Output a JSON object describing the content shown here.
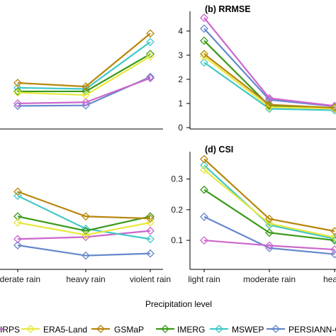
{
  "chart_data": [
    {
      "type": "line",
      "title": "",
      "categories": [
        "light rain",
        "moderate rain",
        "heavy rain",
        "violent rain"
      ],
      "series": [
        {
          "name": "CHIRPS",
          "values": [
            null,
            1.0,
            1.05,
            2.05
          ]
        },
        {
          "name": "ERA5-Land",
          "values": [
            null,
            1.45,
            1.35,
            2.95
          ]
        },
        {
          "name": "GSMaP",
          "values": [
            null,
            1.85,
            1.7,
            3.9
          ]
        },
        {
          "name": "IMERG",
          "values": [
            null,
            1.5,
            1.5,
            3.05
          ]
        },
        {
          "name": "MSWEP",
          "values": [
            null,
            1.65,
            1.6,
            3.55
          ]
        },
        {
          "name": "PERSIANN-CCS",
          "values": [
            null,
            0.9,
            0.92,
            2.1
          ]
        }
      ]
    },
    {
      "type": "line",
      "title": "(b) RRMSE",
      "ylim": [
        0,
        4.7
      ],
      "yticks": [
        0,
        1,
        2,
        3,
        4
      ],
      "categories": [
        "light rain",
        "moderate rain",
        "heavy rain",
        "violent rain"
      ],
      "series": [
        {
          "name": "CHIRPS",
          "values": [
            4.55,
            1.22,
            0.9,
            null
          ]
        },
        {
          "name": "ERA5-Land",
          "values": [
            2.95,
            0.85,
            0.78,
            null
          ]
        },
        {
          "name": "GSMaP",
          "values": [
            3.05,
            0.95,
            0.82,
            null
          ]
        },
        {
          "name": "IMERG",
          "values": [
            3.6,
            0.9,
            0.8,
            null
          ]
        },
        {
          "name": "MSWEP",
          "values": [
            2.7,
            0.78,
            0.72,
            null
          ]
        },
        {
          "name": "PERSIANN-CCS",
          "values": [
            4.1,
            1.15,
            0.88,
            null
          ]
        }
      ]
    },
    {
      "type": "line",
      "title": "",
      "categories": [
        "light rain",
        "moderate rain",
        "heavy rain",
        "violent rain"
      ],
      "series": [
        {
          "name": "CHIRPS",
          "values": [
            null,
            0.39,
            0.4,
            0.43
          ]
        },
        {
          "name": "ERA5-Land",
          "values": [
            null,
            0.47,
            0.41,
            0.47
          ]
        },
        {
          "name": "GSMaP",
          "values": [
            null,
            0.62,
            0.5,
            0.49
          ]
        },
        {
          "name": "IMERG",
          "values": [
            null,
            0.5,
            0.43,
            0.5
          ]
        },
        {
          "name": "MSWEP",
          "values": [
            null,
            0.6,
            0.44,
            0.39
          ]
        },
        {
          "name": "PERSIANN-CCS",
          "values": [
            null,
            0.36,
            0.31,
            0.32
          ]
        }
      ]
    },
    {
      "type": "line",
      "title": "(d) CSI",
      "ylim": [
        0.01,
        0.38
      ],
      "yticks": [
        0.1,
        0.2,
        0.3
      ],
      "categories": [
        "light rain",
        "moderate rain",
        "heavy rain",
        "violent rain"
      ],
      "series": [
        {
          "name": "CHIRPS",
          "values": [
            0.1,
            0.083,
            0.07,
            null
          ]
        },
        {
          "name": "ERA5-Land",
          "values": [
            0.33,
            0.155,
            0.11,
            null
          ]
        },
        {
          "name": "GSMaP",
          "values": [
            0.365,
            0.17,
            0.13,
            null
          ]
        },
        {
          "name": "IMERG",
          "values": [
            0.265,
            0.125,
            0.1,
            null
          ]
        },
        {
          "name": "MSWEP",
          "values": [
            0.345,
            0.15,
            0.105,
            null
          ]
        },
        {
          "name": "PERSIANN-CCS",
          "values": [
            0.177,
            0.075,
            0.055,
            null
          ]
        }
      ]
    }
  ],
  "series_colors": {
    "CHIRPS": "#cc66cc",
    "ERA5-Land": "#e8e840",
    "GSMaP": "#b8860b",
    "IMERG": "#3a9a1a",
    "MSWEP": "#40c8c8",
    "PERSIANN-CCS": "#6688cc"
  },
  "xlabel": "Precipitation level",
  "legend": {
    "placement": "bottom",
    "items": [
      {
        "label": "IRPS",
        "series": "CHIRPS"
      },
      {
        "label": "ERA5-Land",
        "series": "ERA5-Land"
      },
      {
        "label": "GSMaP",
        "series": "GSMaP"
      },
      {
        "label": "IMERG",
        "series": "IMERG"
      },
      {
        "label": "MSWEP",
        "series": "MSWEP"
      },
      {
        "label": "PERSIANN-C",
        "series": "PERSIANN-CCS"
      }
    ]
  },
  "xtick_labels_left": [
    "oderate rain",
    "heavy rain",
    "violent rain"
  ],
  "xtick_labels_right": [
    "light rain",
    "moderate rain",
    "heav"
  ]
}
